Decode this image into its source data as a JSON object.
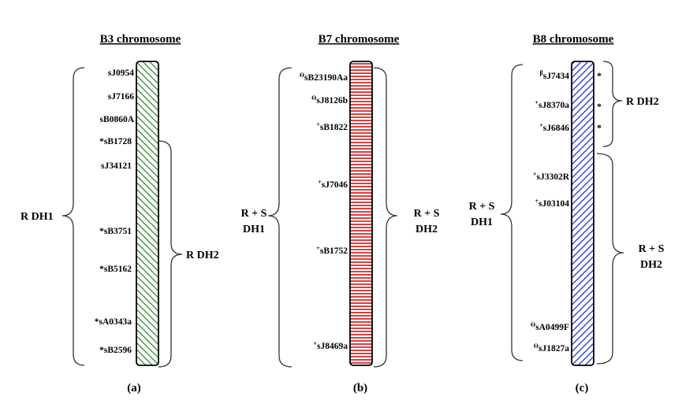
{
  "colors": {
    "b3_stripe": "#2e8b2e",
    "b7_stripe": "#d42020",
    "b8_stripe": "#1f2fcf",
    "outline": "#000000"
  },
  "panels": [
    {
      "title": "B3 chromosome",
      "label": "(a)",
      "markers": [
        {
          "prefix": "",
          "name": "sJ0954"
        },
        {
          "prefix": "",
          "name": "sJ7166"
        },
        {
          "prefix": "",
          "name": "sB0860A"
        },
        {
          "prefix": "*",
          "name": "sB1728"
        },
        {
          "prefix": "",
          "name": "sJ34121"
        },
        {
          "prefix": "*",
          "name": "sB3751"
        },
        {
          "prefix": "*",
          "name": "sB5162"
        },
        {
          "prefix": "*",
          "name": "sA0343a"
        },
        {
          "prefix": "*",
          "name": "sB2596"
        }
      ],
      "left_group": "R DH1",
      "right_group": "R DH2"
    },
    {
      "title": "B7 chromosome",
      "label": "(b)",
      "markers": [
        {
          "prefix": "ϴ",
          "name": "sB23190Aa"
        },
        {
          "prefix": "ϴ",
          "name": "sJ8126b"
        },
        {
          "prefix": "+",
          "name": "sB1822"
        },
        {
          "prefix": "+",
          "name": "sJ7046"
        },
        {
          "prefix": "+",
          "name": "sB1752"
        },
        {
          "prefix": "+",
          "name": "sJ8469a"
        }
      ],
      "left_group": [
        "R + S",
        "DH1"
      ],
      "right_group": [
        "R + S",
        "DH2"
      ]
    },
    {
      "title": "B8 chromosome",
      "label": "(c)",
      "markers": [
        {
          "prefix": "β",
          "name": "sJ7434",
          "star": "*"
        },
        {
          "prefix": "+",
          "name": "sJ8370a",
          "star": "*"
        },
        {
          "prefix": "+",
          "name": "sJ6846",
          "star": "*"
        },
        {
          "prefix": "+",
          "name": "sJ3302R"
        },
        {
          "prefix": "+",
          "name": "sJ03104"
        },
        {
          "prefix": "ϴ",
          "name": "sA0499F"
        },
        {
          "prefix": "ϴ",
          "name": "sJ1827a"
        }
      ],
      "left_group": [
        "R + S",
        "DH1"
      ],
      "right_top_group": "R DH2",
      "right_bottom_group": [
        "R + S",
        "DH2"
      ]
    }
  ]
}
